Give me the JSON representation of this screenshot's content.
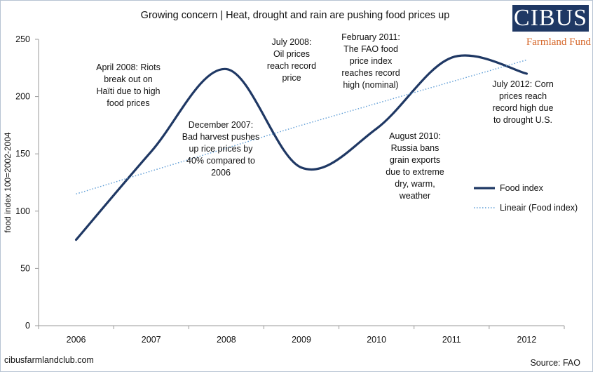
{
  "brand": {
    "name": "CIBUS",
    "tagline": "Farmland Fund"
  },
  "footer": {
    "website": "cibusfarmlandclub.com",
    "source": "Source: FAO"
  },
  "annotations": [
    "April 2008: Riots\nbreak out on\nHaïti due to high\nfood prices",
    "December 2007:\nBad harvest pushes\nup rice prices by\n40% compared to\n2006",
    "July 2008:\nOil prices\nreach record\nprice",
    "February 2011:\nThe FAO food\nprice index\nreaches record\nhigh (nominal)",
    "August 2010:\nRussia bans\ngrain exports\ndue to extreme\ndry, warm,\nweather",
    "July 2012: Corn\nprices reach\nrecord high due\nto drought U.S."
  ],
  "colors": {
    "series": "#1f3864",
    "trend": "#5b9bd5",
    "brand": "#1f3864",
    "tagline": "#d6682b",
    "axis": "#9a9a9a"
  },
  "chart_data": {
    "type": "line",
    "title": "Growing concern | Heat, drought and rain are pushing  food prices up",
    "xlabel": "",
    "ylabel": "food index 100=2002-2004",
    "categories": [
      "2006",
      "2007",
      "2008",
      "2009",
      "2010",
      "2011",
      "2012"
    ],
    "series": [
      {
        "name": "Food index",
        "values": [
          75,
          152,
          224,
          138,
          172,
          234,
          220
        ],
        "style": "solid"
      },
      {
        "name": "Lineair (Food index)",
        "values": [
          115,
          135,
          155,
          175,
          194,
          213,
          232
        ],
        "style": "dotted"
      }
    ],
    "yticks": [
      "0",
      "50",
      "100",
      "150",
      "200",
      "250"
    ],
    "ylim": [
      0,
      250
    ],
    "grid": false,
    "legend": "right"
  }
}
